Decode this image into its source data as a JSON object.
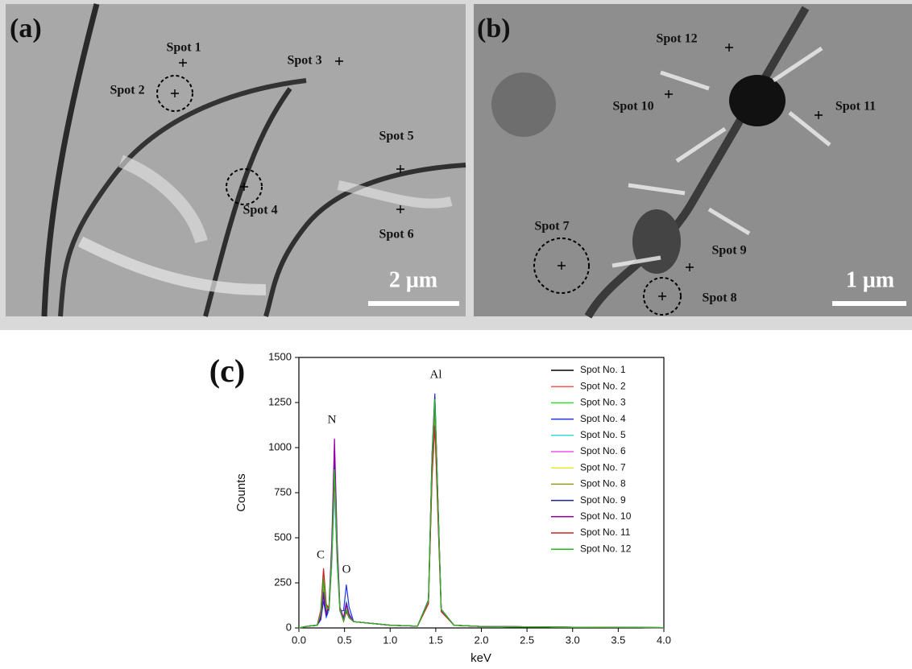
{
  "panels": [
    {
      "label": "(a)",
      "spots": [
        "Spot 1",
        "Spot 2",
        "Spot 3",
        "Spot 4",
        "Spot 5",
        "Spot 6"
      ],
      "scale_bar": "2 μm"
    },
    {
      "label": "(b)",
      "spots": [
        "Spot 7",
        "Spot 8",
        "Spot 9",
        "Spot 10",
        "Spot 11",
        "Spot 12"
      ],
      "scale_bar": "1 μm"
    }
  ],
  "chart_data": {
    "type": "line",
    "title": "(c)",
    "x_label": "keV",
    "y_label": "Counts",
    "annotations": [
      "C",
      "N",
      "O",
      "Al"
    ],
    "x": [
      0,
      0.1,
      0.2,
      0.24,
      0.27,
      0.3,
      0.33,
      0.36,
      0.39,
      0.42,
      0.45,
      0.49,
      0.52,
      0.55,
      0.6,
      0.8,
      1.0,
      1.3,
      1.42,
      1.46,
      1.49,
      1.52,
      1.56,
      1.7,
      2.0,
      3.0,
      4.0
    ],
    "series": [
      {
        "name": "Spot No. 1",
        "color": "#000000",
        "values": [
          0,
          10,
          15,
          75,
          250,
          100,
          105,
          383,
          850,
          383,
          98,
          48,
          120,
          68,
          35,
          25,
          15,
          10,
          144,
          900,
          1200,
          720,
          96,
          15,
          8,
          4,
          2
        ]
      },
      {
        "name": "Spot No. 2",
        "color": "#ff5555",
        "values": [
          0,
          10,
          15,
          90,
          300,
          120,
          110,
          405,
          900,
          405,
          102,
          44,
          110,
          64,
          35,
          25,
          15,
          10,
          138,
          863,
          1150,
          690,
          92,
          15,
          8,
          4,
          2
        ]
      },
      {
        "name": "Spot No. 3",
        "color": "#33dd33",
        "values": [
          0,
          10,
          15,
          84,
          280,
          112,
          107,
          392,
          870,
          392,
          100,
          52,
          130,
          72,
          35,
          25,
          15,
          10,
          150,
          938,
          1250,
          750,
          100,
          15,
          8,
          4,
          2
        ]
      },
      {
        "name": "Spot No. 4",
        "color": "#2233ee",
        "values": [
          0,
          10,
          15,
          45,
          150,
          60,
          100,
          360,
          800,
          360,
          94,
          96,
          240,
          116,
          35,
          25,
          15,
          10,
          156,
          975,
          1300,
          780,
          104,
          15,
          8,
          4,
          2
        ]
      },
      {
        "name": "Spot No. 5",
        "color": "#33dddd",
        "values": [
          0,
          10,
          15,
          60,
          200,
          80,
          95,
          338,
          750,
          338,
          90,
          60,
          150,
          80,
          35,
          25,
          15,
          10,
          146,
          915,
          1220,
          732,
          98,
          15,
          8,
          4,
          2
        ]
      },
      {
        "name": "Spot No. 6",
        "color": "#ee55ee",
        "values": [
          0,
          10,
          15,
          66,
          220,
          88,
          110,
          405,
          900,
          405,
          102,
          48,
          120,
          68,
          35,
          25,
          15,
          10,
          142,
          885,
          1180,
          708,
          94,
          15,
          8,
          4,
          2
        ]
      },
      {
        "name": "Spot No. 7",
        "color": "#e8e830",
        "values": [
          0,
          10,
          15,
          78,
          260,
          104,
          103,
          374,
          830,
          374,
          96,
          44,
          110,
          64,
          35,
          25,
          15,
          10,
          149,
          930,
          1240,
          744,
          99,
          15,
          8,
          4,
          2
        ]
      },
      {
        "name": "Spot No. 8",
        "color": "#999922",
        "values": [
          0,
          10,
          15,
          72,
          240,
          96,
          108,
          396,
          880,
          396,
          100,
          40,
          100,
          60,
          35,
          25,
          15,
          10,
          139,
          870,
          1160,
          696,
          93,
          15,
          8,
          4,
          2
        ]
      },
      {
        "name": "Spot No. 9",
        "color": "#222288",
        "values": [
          0,
          10,
          15,
          54,
          180,
          72,
          115,
          428,
          950,
          428,
          106,
          52,
          130,
          72,
          35,
          25,
          15,
          10,
          154,
          960,
          1280,
          768,
          102,
          15,
          8,
          4,
          2
        ]
      },
      {
        "name": "Spot No. 10",
        "color": "#9900aa",
        "values": [
          0,
          10,
          15,
          60,
          200,
          80,
          125,
          473,
          1050,
          473,
          114,
          56,
          140,
          76,
          35,
          25,
          15,
          10,
          151,
          945,
          1260,
          756,
          101,
          15,
          8,
          4,
          2
        ]
      },
      {
        "name": "Spot No. 11",
        "color": "#cc2222",
        "values": [
          0,
          10,
          15,
          99,
          330,
          132,
          105,
          383,
          850,
          383,
          98,
          36,
          90,
          56,
          35,
          25,
          15,
          10,
          134,
          840,
          1120,
          672,
          90,
          15,
          8,
          4,
          2
        ]
      },
      {
        "name": "Spot No. 12",
        "color": "#22bb22",
        "values": [
          0,
          10,
          15,
          81,
          270,
          108,
          108,
          396,
          880,
          396,
          100,
          40,
          100,
          60,
          35,
          25,
          15,
          10,
          152,
          953,
          1270,
          762,
          102,
          15,
          8,
          4,
          2
        ]
      }
    ],
    "xlim": [
      0,
      4
    ],
    "xticks": [
      {
        "value": 0,
        "label": "0.0"
      },
      0.5,
      {
        "value": 1,
        "label": "1.0"
      },
      1.5,
      {
        "value": 2,
        "label": "2.0"
      },
      2.5,
      {
        "value": 3,
        "label": "3.0"
      },
      3.5,
      {
        "value": 4,
        "label": "4.0"
      }
    ],
    "ylim": [
      0,
      1500
    ],
    "yticks": [
      0,
      250,
      500,
      750,
      1000,
      1250,
      1500
    ],
    "legend": "upper right"
  }
}
